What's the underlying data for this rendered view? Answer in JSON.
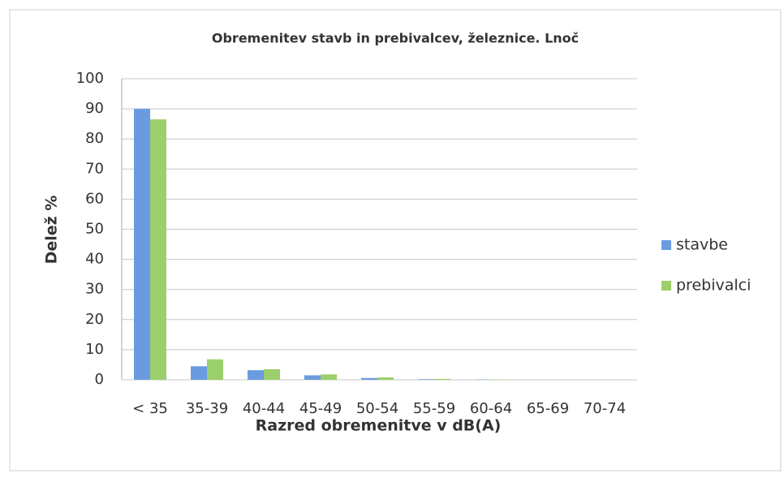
{
  "chart_data": {
    "type": "bar",
    "title": "Obremenitev stavb in prebivalcev, železnice. Lnoč",
    "x_label": "Razred obremenitve v dB(A)",
    "y_label": "Delež %",
    "categories": [
      "< 35",
      "35-39",
      "40-44",
      "45-49",
      "50-54",
      "55-59",
      "60-64",
      "65-69",
      "70-74"
    ],
    "series": [
      {
        "name": "stavbe",
        "color": "#6a9be0",
        "values": [
          90,
          4.5,
          3.2,
          1.5,
          0.6,
          0.2,
          0.1,
          0,
          0
        ]
      },
      {
        "name": "prebivalci",
        "color": "#9bcf6b",
        "values": [
          86.5,
          6.8,
          3.5,
          1.8,
          0.8,
          0.3,
          0.1,
          0,
          0
        ]
      }
    ],
    "ylim": [
      0,
      100
    ],
    "yticks": [
      0,
      10,
      20,
      30,
      40,
      50,
      60,
      70,
      80,
      90,
      100
    ],
    "grid": true,
    "legend": "right"
  }
}
